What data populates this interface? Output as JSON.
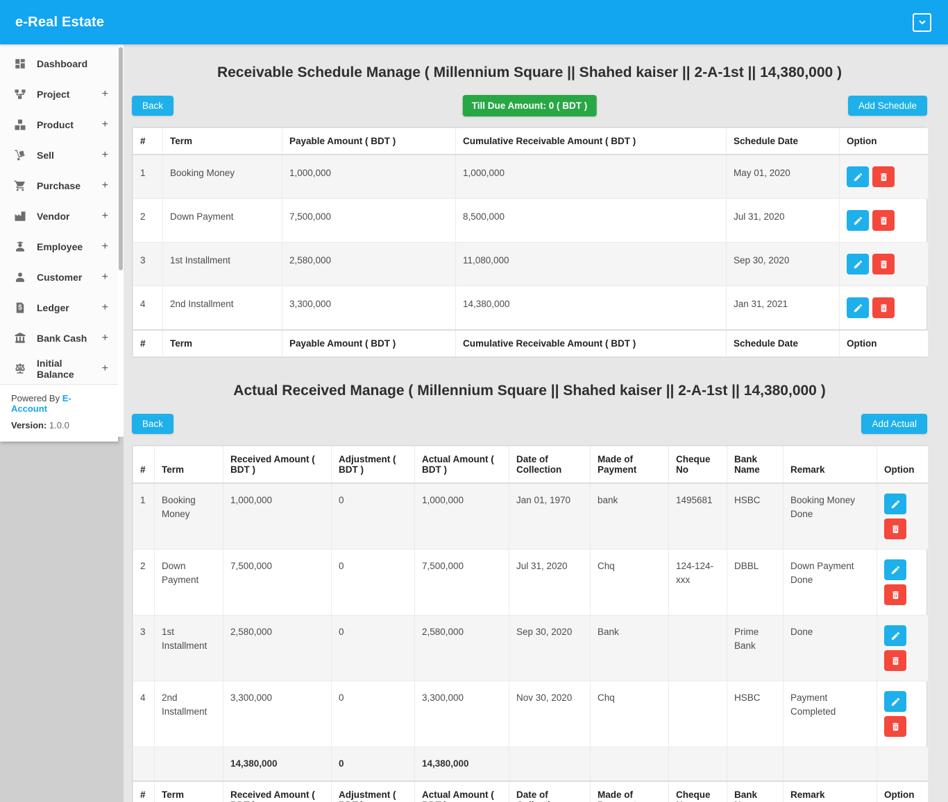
{
  "colors": {
    "brand": "#12a5f0",
    "btn_blue": "#1db0ea",
    "green": "#28a745",
    "red": "#f4483c"
  },
  "app": {
    "title": "e-Real Estate"
  },
  "sidebar": {
    "items": [
      {
        "label": "Dashboard",
        "icon": "dashboard-icon",
        "expandable": false
      },
      {
        "label": "Project",
        "icon": "project-diagram-icon",
        "expandable": true
      },
      {
        "label": "Product",
        "icon": "boxes-icon",
        "expandable": true
      },
      {
        "label": "Sell",
        "icon": "dolly-icon",
        "expandable": true
      },
      {
        "label": "Purchase",
        "icon": "shopping-cart-icon",
        "expandable": true
      },
      {
        "label": "Vendor",
        "icon": "factory-icon",
        "expandable": true
      },
      {
        "label": "Employee",
        "icon": "employee-icon",
        "expandable": true
      },
      {
        "label": "Customer",
        "icon": "customer-icon",
        "expandable": true
      },
      {
        "label": "Ledger",
        "icon": "ledger-icon",
        "expandable": true
      },
      {
        "label": "Bank Cash",
        "icon": "bank-icon",
        "expandable": true
      },
      {
        "label": "Initial Balance",
        "icon": "balance-scale-icon",
        "expandable": true
      }
    ],
    "expand_glyph": "+",
    "powered_prefix": "Powered By",
    "powered_link": "E-Account",
    "version_label": "Version:",
    "version": "1.0.0"
  },
  "schedule": {
    "title": "Receivable Schedule Manage ( Millennium Square || Shahed kaiser || 2-A-1st || 14,380,000 )",
    "back_label": "Back",
    "due_label": "Till Due Amount: 0 ( BDT )",
    "add_label": "Add Schedule",
    "columns": [
      "#",
      "Term",
      "Payable Amount ( BDT )",
      "Cumulative Receivable Amount ( BDT )",
      "Schedule Date",
      "Option"
    ],
    "rows": [
      {
        "num": "1",
        "term": "Booking Money",
        "payable": "1,000,000",
        "cumulative": "1,000,000",
        "date": "May 01, 2020"
      },
      {
        "num": "2",
        "term": "Down Payment",
        "payable": "7,500,000",
        "cumulative": "8,500,000",
        "date": "Jul 31, 2020"
      },
      {
        "num": "3",
        "term": "1st Installment",
        "payable": "2,580,000",
        "cumulative": "11,080,000",
        "date": "Sep 30, 2020"
      },
      {
        "num": "4",
        "term": "2nd Installment",
        "payable": "3,300,000",
        "cumulative": "14,380,000",
        "date": "Jan 31, 2021"
      }
    ]
  },
  "actual": {
    "title": "Actual Received Manage ( Millennium Square || Shahed kaiser || 2-A-1st || 14,380,000 )",
    "back_label": "Back",
    "add_label": "Add Actual",
    "columns": [
      "#",
      "Term",
      "Received Amount ( BDT )",
      "Adjustment ( BDT )",
      "Actual Amount ( BDT )",
      "Date of Collection",
      "Made of Payment",
      "Cheque No",
      "Bank Name",
      "Remark",
      "Option"
    ],
    "rows": [
      {
        "num": "1",
        "term": "Booking Money",
        "received": "1,000,000",
        "adjustment": "0",
        "actual": "1,000,000",
        "date": "Jan 01, 1970",
        "made": "bank",
        "cheque": "1495681",
        "bank": "HSBC",
        "remark": "Booking Money Done"
      },
      {
        "num": "2",
        "term": "Down Payment",
        "received": "7,500,000",
        "adjustment": "0",
        "actual": "7,500,000",
        "date": "Jul 31, 2020",
        "made": "Chq",
        "cheque": "124-124-xxx",
        "bank": "DBBL",
        "remark": "Down Payment Done"
      },
      {
        "num": "3",
        "term": "1st Installment",
        "received": "2,580,000",
        "adjustment": "0",
        "actual": "2,580,000",
        "date": "Sep 30, 2020",
        "made": "Bank",
        "cheque": "",
        "bank": "Prime Bank",
        "remark": "Done"
      },
      {
        "num": "4",
        "term": "2nd Installment",
        "received": "3,300,000",
        "adjustment": "0",
        "actual": "3,300,000",
        "date": "Nov 30, 2020",
        "made": "Chq",
        "cheque": "",
        "bank": "HSBC",
        "remark": "Payment Completed"
      }
    ],
    "totals": {
      "received": "14,380,000",
      "adjustment": "0",
      "actual": "14,380,000"
    }
  }
}
